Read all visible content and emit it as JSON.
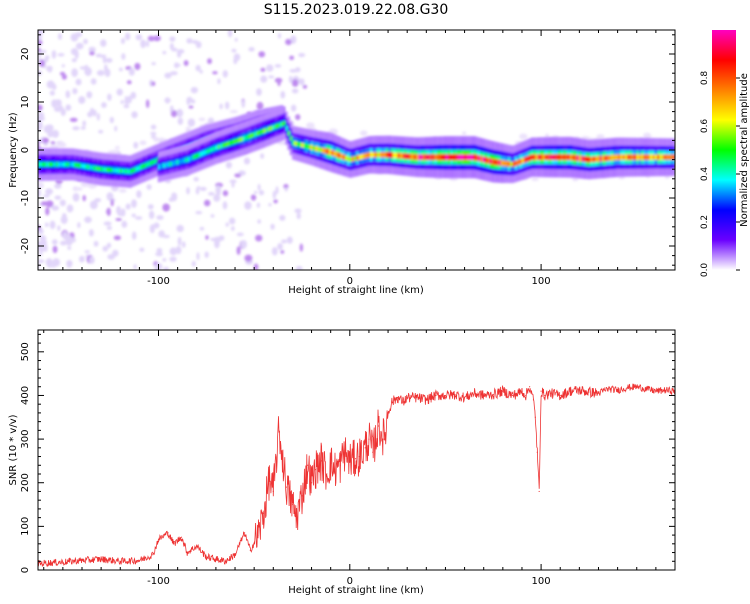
{
  "title": "S115.2023.019.22.08.G30",
  "colorbar": {
    "label": "Normalized spectral amplitude",
    "ticks": [
      "0.0",
      "0.2",
      "0.4",
      "0.6",
      "0.8"
    ],
    "stops": [
      "#ffffff",
      "#6a00ff",
      "#0000ff",
      "#00ffff",
      "#00ff00",
      "#ffff00",
      "#ff8000",
      "#ff0000",
      "#ff00c0"
    ]
  },
  "chart_data": [
    {
      "type": "heatmap",
      "xlabel": "Height of straight line (km)",
      "ylabel": "Frequency (Hz)",
      "xlim": [
        -163,
        170
      ],
      "ylim": [
        -25,
        25
      ],
      "xticks": [
        {
          "value": -100,
          "label": "-100"
        },
        {
          "value": 0,
          "label": "0"
        },
        {
          "value": 100,
          "label": "100"
        }
      ],
      "yticks": [
        {
          "value": 20,
          "label": "20"
        },
        {
          "value": 10,
          "label": "10"
        },
        {
          "value": 0,
          "label": "0"
        },
        {
          "value": -10,
          "label": "-10"
        },
        {
          "value": -20,
          "label": "-20"
        }
      ],
      "ridge": [
        {
          "x": -163,
          "f": -3,
          "amp": 0.45
        },
        {
          "x": -145,
          "f": -3,
          "amp": 0.4
        },
        {
          "x": -130,
          "f": -4,
          "amp": 0.45
        },
        {
          "x": -115,
          "f": -4.5,
          "amp": 0.42
        },
        {
          "x": -100,
          "f": -2,
          "amp": 0.42
        },
        {
          "x": -88,
          "f": 0,
          "amp": 0.38
        },
        {
          "x": -75,
          "f": 2,
          "amp": 0.4
        },
        {
          "x": -60,
          "f": 3.5,
          "amp": 0.42
        },
        {
          "x": -48,
          "f": 5,
          "amp": 0.45
        },
        {
          "x": -35,
          "f": 6,
          "amp": 0.45
        },
        {
          "x": -30,
          "f": 1.5,
          "amp": 0.5
        },
        {
          "x": -20,
          "f": 0.5,
          "amp": 0.6
        },
        {
          "x": -10,
          "f": -0.5,
          "amp": 0.8
        },
        {
          "x": 0,
          "f": -2,
          "amp": 0.65
        },
        {
          "x": 10,
          "f": -1,
          "amp": 0.7
        },
        {
          "x": 20,
          "f": -1,
          "amp": 0.75
        },
        {
          "x": 35,
          "f": -1.5,
          "amp": 0.82
        },
        {
          "x": 50,
          "f": -1.5,
          "amp": 0.95
        },
        {
          "x": 65,
          "f": -1.5,
          "amp": 0.95
        },
        {
          "x": 75,
          "f": -2.5,
          "amp": 0.9
        },
        {
          "x": 85,
          "f": -3,
          "amp": 0.7
        },
        {
          "x": 95,
          "f": -1.5,
          "amp": 0.8
        },
        {
          "x": 105,
          "f": -1.5,
          "amp": 0.85
        },
        {
          "x": 115,
          "f": -1.5,
          "amp": 0.88
        },
        {
          "x": 125,
          "f": -2,
          "amp": 0.8
        },
        {
          "x": 140,
          "f": -1.5,
          "amp": 0.8
        },
        {
          "x": 155,
          "f": -1.5,
          "amp": 0.75
        },
        {
          "x": 170,
          "f": -1.5,
          "amp": 0.7
        }
      ],
      "secondary_ridge": [
        {
          "x": -100,
          "f": -3.5,
          "amp": 0.35
        },
        {
          "x": -85,
          "f": -2,
          "amp": 0.4
        },
        {
          "x": -70,
          "f": 0.5,
          "amp": 0.45
        },
        {
          "x": -55,
          "f": 2.5,
          "amp": 0.5
        },
        {
          "x": -45,
          "f": 4,
          "amp": 0.5
        },
        {
          "x": -35,
          "f": 5.5,
          "amp": 0.45
        }
      ]
    },
    {
      "type": "line",
      "xlabel": "Height of straight line (km)",
      "ylabel": "SNR (10 * v/v)",
      "xlim": [
        -163,
        170
      ],
      "ylim": [
        0,
        550
      ],
      "xticks": [
        {
          "value": -100,
          "label": "-100"
        },
        {
          "value": 0,
          "label": "0"
        },
        {
          "value": 100,
          "label": "100"
        }
      ],
      "yticks": [
        {
          "value": 0,
          "label": "0"
        },
        {
          "value": 100,
          "label": "100"
        },
        {
          "value": 200,
          "label": "200"
        },
        {
          "value": 300,
          "label": "300"
        },
        {
          "value": 400,
          "label": "400"
        },
        {
          "value": 500,
          "label": "500"
        }
      ],
      "color": "#ee3333",
      "series": [
        {
          "x": [
            -163,
            -150,
            -140,
            -130,
            -120,
            -110,
            -103,
            -100,
            -95,
            -92,
            -88,
            -85,
            -80,
            -75,
            -70,
            -65,
            -60,
            -55,
            -52,
            -48,
            -45,
            -42,
            -40,
            -37,
            -35,
            -33,
            -30,
            -28,
            -25,
            -22,
            -20,
            -18,
            -15,
            -12,
            -10,
            -8,
            -5,
            -3,
            0,
            3,
            5,
            8,
            10,
            12,
            15,
            18,
            20,
            22,
            25,
            28,
            30,
            35,
            40,
            45,
            50,
            55,
            60,
            65,
            70,
            75,
            80,
            85,
            88,
            90,
            92,
            94,
            96,
            97,
            98,
            99,
            100,
            102,
            105,
            110,
            115,
            120,
            125,
            130,
            135,
            140,
            145,
            150,
            155,
            160,
            165,
            170
          ],
          "y": [
            15,
            18,
            22,
            25,
            20,
            22,
            35,
            70,
            85,
            60,
            75,
            40,
            55,
            30,
            25,
            20,
            35,
            85,
            45,
            80,
            130,
            210,
            180,
            320,
            250,
            190,
            150,
            120,
            170,
            240,
            200,
            230,
            250,
            220,
            245,
            230,
            240,
            270,
            250,
            255,
            260,
            280,
            300,
            270,
            330,
            300,
            360,
            385,
            395,
            385,
            395,
            395,
            390,
            400,
            400,
            402,
            395,
            405,
            400,
            402,
            410,
            400,
            405,
            410,
            400,
            420,
            390,
            350,
            270,
            180,
            410,
            400,
            405,
            400,
            410,
            412,
            408,
            405,
            415,
            412,
            418,
            420,
            415,
            410,
            412,
            410
          ]
        }
      ]
    }
  ]
}
